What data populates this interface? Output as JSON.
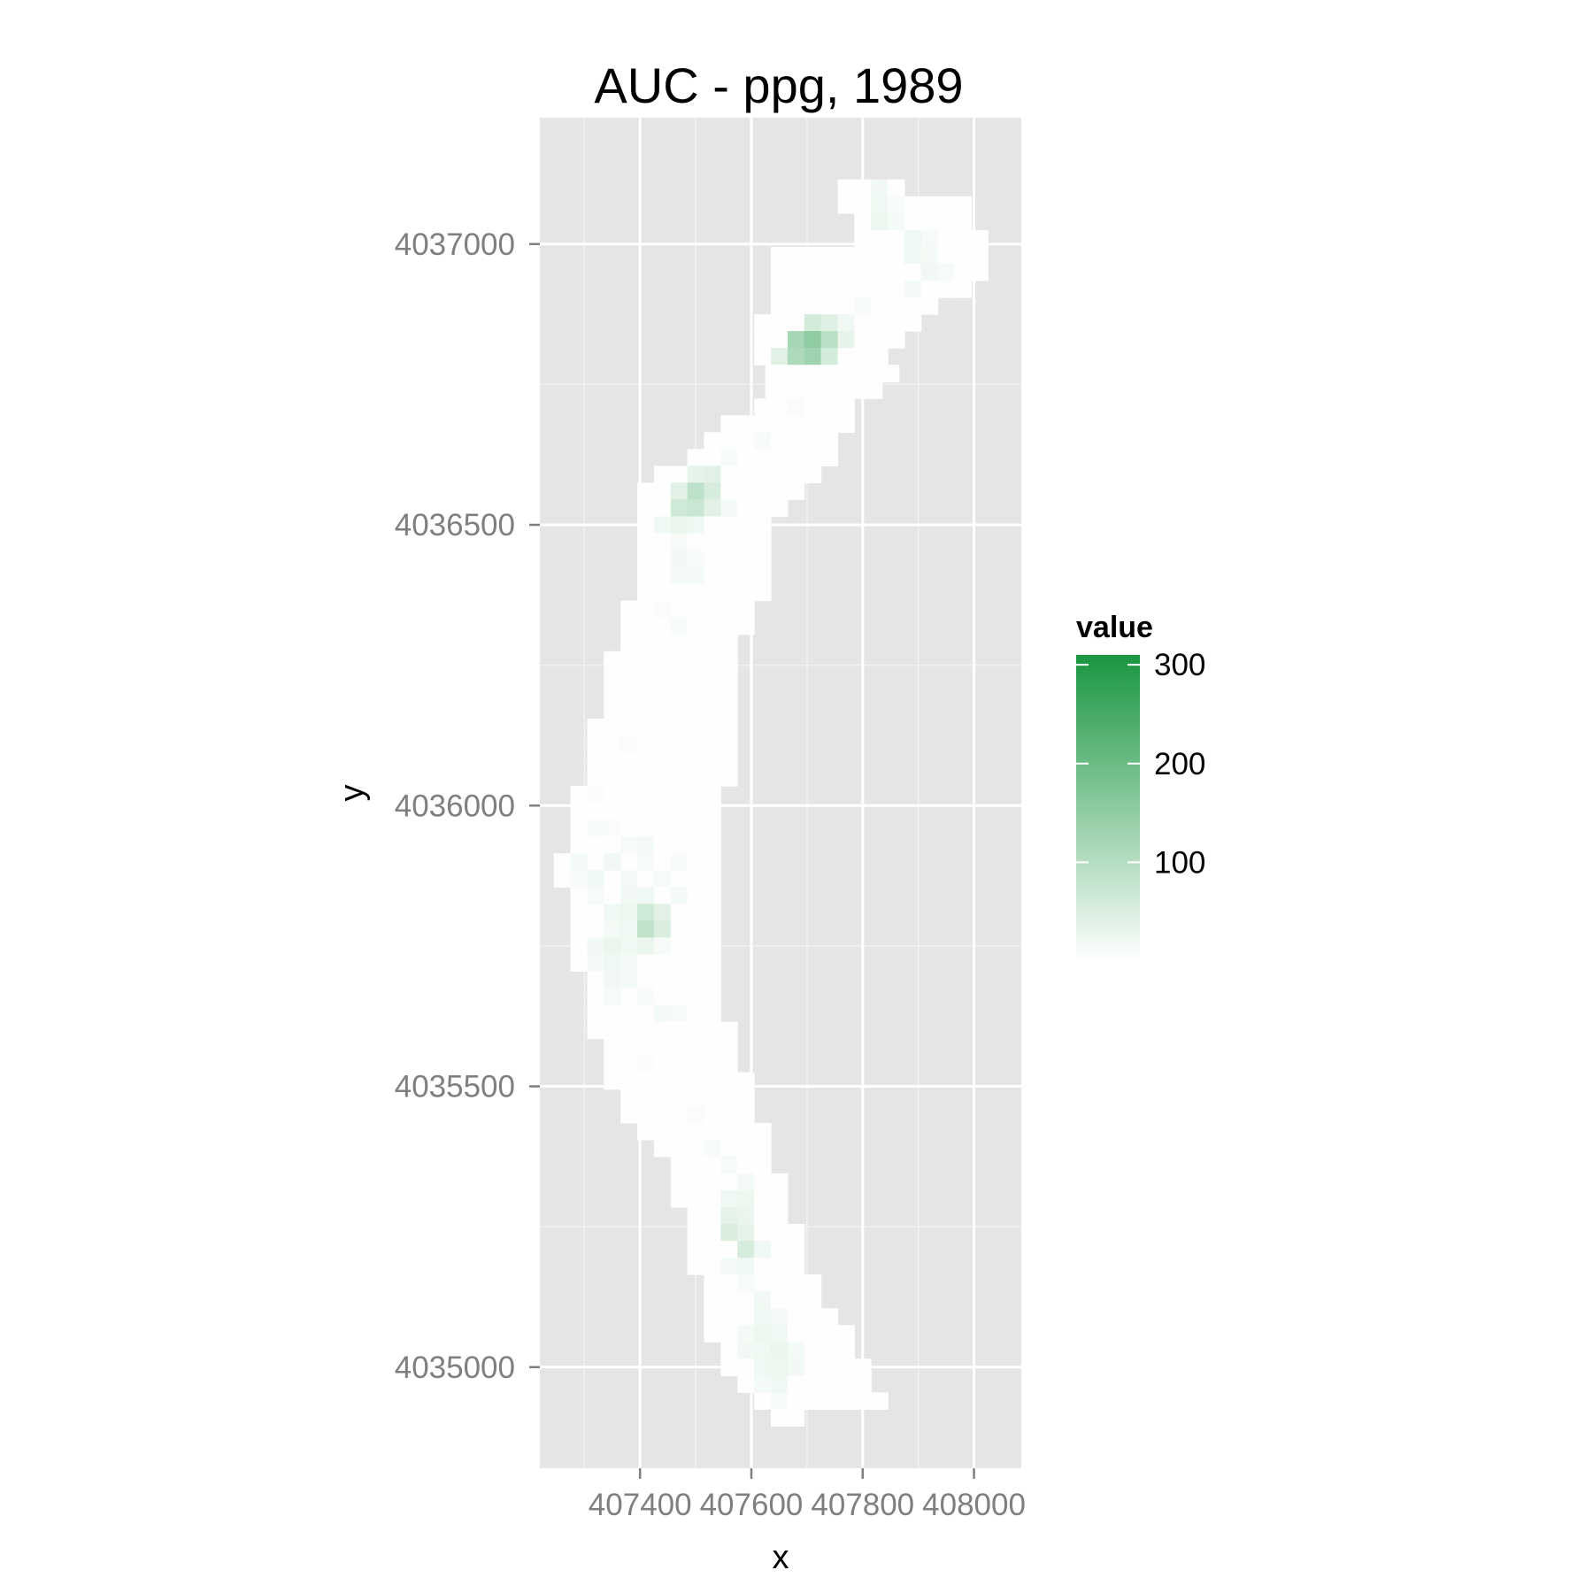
{
  "chart_data": {
    "type": "heatmap",
    "title": "AUC - ppg, 1989",
    "xlabel": "x",
    "ylabel": "y",
    "xlim": [
      407220,
      408085
    ],
    "ylim": [
      4034820,
      4037225
    ],
    "x_ticks": [
      407400,
      407600,
      407800,
      408000
    ],
    "x_tick_labels": [
      "407400",
      "407600",
      "407800",
      "408000"
    ],
    "y_ticks": [
      4035000,
      4035500,
      4036000,
      4036500,
      4037000
    ],
    "y_tick_labels": [
      "4035000",
      "4035500",
      "4036000",
      "4036500",
      "4037000"
    ],
    "grid": true,
    "cell_size": 30,
    "legend": {
      "title": "value",
      "position": "right",
      "min": 0,
      "max": 310,
      "breaks": [
        100,
        200,
        300
      ],
      "break_labels": [
        "100",
        "200",
        "300"
      ],
      "low_color": "#ffffff",
      "high_color": "#1a9641"
    },
    "rows": [
      {
        "y": 4037100,
        "x0": 407770,
        "x1": 407860,
        "hot": [
          [
            407830,
            18
          ]
        ]
      },
      {
        "y": 4037070,
        "x0": 407770,
        "x1": 408000,
        "hot": [
          [
            407830,
            22
          ],
          [
            407860,
            10
          ]
        ]
      },
      {
        "y": 4037040,
        "x0": 407800,
        "x1": 408000,
        "hot": [
          [
            407830,
            25
          ],
          [
            407860,
            15
          ]
        ]
      },
      {
        "y": 4037010,
        "x0": 407800,
        "x1": 408030,
        "hot": [
          [
            407890,
            20
          ],
          [
            407920,
            12
          ]
        ]
      },
      {
        "y": 4036980,
        "x0": 407650,
        "x1": 408030,
        "hot": [
          [
            407890,
            22
          ],
          [
            407920,
            15
          ]
        ]
      },
      {
        "y": 4036950,
        "x0": 407650,
        "x1": 408030,
        "hot": [
          [
            407920,
            18
          ],
          [
            407950,
            12
          ]
        ]
      },
      {
        "y": 4036920,
        "x0": 407650,
        "x1": 408000,
        "hot": [
          [
            407890,
            15
          ]
        ]
      },
      {
        "y": 4036890,
        "x0": 407650,
        "x1": 407940,
        "hot": [
          [
            407800,
            10
          ]
        ]
      },
      {
        "y": 4036860,
        "x0": 407620,
        "x1": 407910,
        "hot": [
          [
            407710,
            60
          ],
          [
            407740,
            45
          ],
          [
            407770,
            20
          ]
        ]
      },
      {
        "y": 4036830,
        "x0": 407620,
        "x1": 407880,
        "hot": [
          [
            407680,
            120
          ],
          [
            407710,
            150
          ],
          [
            407740,
            95
          ],
          [
            407770,
            35
          ]
        ]
      },
      {
        "y": 4036800,
        "x0": 407620,
        "x1": 407850,
        "hot": [
          [
            407650,
            40
          ],
          [
            407680,
            110
          ],
          [
            407710,
            130
          ],
          [
            407740,
            60
          ]
        ]
      },
      {
        "y": 4036770,
        "x0": 407640,
        "x1": 407850,
        "hot": [
          [
            407680,
            30
          ],
          [
            407710,
            25
          ]
        ]
      },
      {
        "y": 4036740,
        "x0": 407640,
        "x1": 407820,
        "hot": []
      },
      {
        "y": 4036710,
        "x0": 407620,
        "x1": 407790,
        "hot": [
          [
            407680,
            8
          ]
        ]
      },
      {
        "y": 4036680,
        "x0": 407560,
        "x1": 407790,
        "hot": []
      },
      {
        "y": 4036650,
        "x0": 407530,
        "x1": 407760,
        "hot": [
          [
            407620,
            10
          ]
        ]
      },
      {
        "y": 4036620,
        "x0": 407500,
        "x1": 407760,
        "hot": [
          [
            407560,
            12
          ]
        ]
      },
      {
        "y": 4036590,
        "x0": 407440,
        "x1": 407730,
        "hot": [
          [
            407500,
            35
          ],
          [
            407530,
            40
          ]
        ]
      },
      {
        "y": 4036560,
        "x0": 407410,
        "x1": 407700,
        "hot": [
          [
            407470,
            40
          ],
          [
            407500,
            90
          ],
          [
            407530,
            55
          ]
        ]
      },
      {
        "y": 4036530,
        "x0": 407410,
        "x1": 407670,
        "hot": [
          [
            407470,
            65
          ],
          [
            407500,
            75
          ],
          [
            407530,
            40
          ],
          [
            407560,
            15
          ]
        ]
      },
      {
        "y": 4036500,
        "x0": 407410,
        "x1": 407640,
        "hot": [
          [
            407440,
            20
          ],
          [
            407470,
            30
          ],
          [
            407500,
            20
          ]
        ]
      },
      {
        "y": 4036470,
        "x0": 407410,
        "x1": 407640,
        "hot": [
          [
            407470,
            12
          ]
        ]
      },
      {
        "y": 4036440,
        "x0": 407410,
        "x1": 407640,
        "hot": [
          [
            407470,
            18
          ],
          [
            407500,
            10
          ]
        ]
      },
      {
        "y": 4036410,
        "x0": 407410,
        "x1": 407640,
        "hot": [
          [
            407470,
            15
          ],
          [
            407500,
            15
          ]
        ]
      },
      {
        "y": 4036380,
        "x0": 407410,
        "x1": 407640,
        "hot": []
      },
      {
        "y": 4036350,
        "x0": 407380,
        "x1": 407610,
        "hot": [
          [
            407440,
            8
          ]
        ]
      },
      {
        "y": 4036320,
        "x0": 407380,
        "x1": 407610,
        "hot": [
          [
            407470,
            10
          ]
        ]
      },
      {
        "y": 4036290,
        "x0": 407380,
        "x1": 407580,
        "hot": []
      },
      {
        "y": 4036260,
        "x0": 407350,
        "x1": 407580,
        "hot": []
      },
      {
        "y": 4036230,
        "x0": 407350,
        "x1": 407580,
        "hot": []
      },
      {
        "y": 4036200,
        "x0": 407350,
        "x1": 407580,
        "hot": []
      },
      {
        "y": 4036170,
        "x0": 407350,
        "x1": 407580,
        "hot": []
      },
      {
        "y": 4036140,
        "x0": 407320,
        "x1": 407580,
        "hot": []
      },
      {
        "y": 4036110,
        "x0": 407320,
        "x1": 407580,
        "hot": [
          [
            407380,
            8
          ]
        ]
      },
      {
        "y": 4036080,
        "x0": 407320,
        "x1": 407580,
        "hot": []
      },
      {
        "y": 4036050,
        "x0": 407320,
        "x1": 407580,
        "hot": []
      },
      {
        "y": 4036020,
        "x0": 407290,
        "x1": 407550,
        "hot": [
          [
            407320,
            6
          ]
        ]
      },
      {
        "y": 4035990,
        "x0": 407290,
        "x1": 407550,
        "hot": []
      },
      {
        "y": 4035960,
        "x0": 407290,
        "x1": 407550,
        "hot": [
          [
            407320,
            10
          ],
          [
            407350,
            8
          ]
        ]
      },
      {
        "y": 4035930,
        "x0": 407290,
        "x1": 407550,
        "hot": [
          [
            407380,
            12
          ],
          [
            407410,
            15
          ]
        ]
      },
      {
        "y": 4035900,
        "x0": 407260,
        "x1": 407550,
        "hot": [
          [
            407290,
            15
          ],
          [
            407350,
            18
          ],
          [
            407410,
            12
          ],
          [
            407470,
            10
          ]
        ]
      },
      {
        "y": 4035870,
        "x0": 407260,
        "x1": 407550,
        "hot": [
          [
            407290,
            10
          ],
          [
            407320,
            20
          ],
          [
            407380,
            15
          ],
          [
            407440,
            12
          ]
        ]
      },
      {
        "y": 4035840,
        "x0": 407290,
        "x1": 407550,
        "hot": [
          [
            407320,
            12
          ],
          [
            407380,
            18
          ],
          [
            407410,
            22
          ],
          [
            407470,
            15
          ]
        ]
      },
      {
        "y": 4035810,
        "x0": 407290,
        "x1": 407550,
        "hot": [
          [
            407350,
            20
          ],
          [
            407380,
            25
          ],
          [
            407410,
            65
          ],
          [
            407440,
            40
          ]
        ]
      },
      {
        "y": 4035780,
        "x0": 407290,
        "x1": 407550,
        "hot": [
          [
            407350,
            15
          ],
          [
            407380,
            20
          ],
          [
            407410,
            85
          ],
          [
            407440,
            50
          ]
        ]
      },
      {
        "y": 4035750,
        "x0": 407290,
        "x1": 407550,
        "hot": [
          [
            407320,
            18
          ],
          [
            407350,
            30
          ],
          [
            407380,
            22
          ],
          [
            407410,
            30
          ],
          [
            407440,
            12
          ]
        ]
      },
      {
        "y": 4035720,
        "x0": 407290,
        "x1": 407550,
        "hot": [
          [
            407320,
            15
          ],
          [
            407350,
            20
          ],
          [
            407380,
            15
          ]
        ]
      },
      {
        "y": 4035690,
        "x0": 407320,
        "x1": 407550,
        "hot": [
          [
            407350,
            18
          ],
          [
            407380,
            15
          ]
        ]
      },
      {
        "y": 4035660,
        "x0": 407320,
        "x1": 407550,
        "hot": [
          [
            407350,
            12
          ],
          [
            407410,
            10
          ]
        ]
      },
      {
        "y": 4035630,
        "x0": 407320,
        "x1": 407550,
        "hot": [
          [
            407440,
            15
          ],
          [
            407470,
            12
          ]
        ]
      },
      {
        "y": 4035600,
        "x0": 407320,
        "x1": 407580,
        "hot": []
      },
      {
        "y": 4035570,
        "x0": 407350,
        "x1": 407580,
        "hot": []
      },
      {
        "y": 4035540,
        "x0": 407350,
        "x1": 407580,
        "hot": [
          [
            407410,
            6
          ]
        ]
      },
      {
        "y": 4035510,
        "x0": 407350,
        "x1": 407610,
        "hot": []
      },
      {
        "y": 4035480,
        "x0": 407380,
        "x1": 407610,
        "hot": []
      },
      {
        "y": 4035450,
        "x0": 407380,
        "x1": 407610,
        "hot": [
          [
            407500,
            8
          ]
        ]
      },
      {
        "y": 4035420,
        "x0": 407410,
        "x1": 407640,
        "hot": []
      },
      {
        "y": 4035390,
        "x0": 407440,
        "x1": 407640,
        "hot": [
          [
            407530,
            10
          ]
        ]
      },
      {
        "y": 4035360,
        "x0": 407470,
        "x1": 407640,
        "hot": [
          [
            407560,
            12
          ]
        ]
      },
      {
        "y": 4035330,
        "x0": 407470,
        "x1": 407670,
        "hot": [
          [
            407590,
            15
          ]
        ]
      },
      {
        "y": 4035300,
        "x0": 407470,
        "x1": 407670,
        "hot": [
          [
            407560,
            20
          ],
          [
            407590,
            25
          ]
        ]
      },
      {
        "y": 4035270,
        "x0": 407500,
        "x1": 407670,
        "hot": [
          [
            407560,
            35
          ],
          [
            407590,
            30
          ]
        ]
      },
      {
        "y": 4035240,
        "x0": 407500,
        "x1": 407700,
        "hot": [
          [
            407560,
            50
          ],
          [
            407590,
            35
          ]
        ]
      },
      {
        "y": 4035210,
        "x0": 407500,
        "x1": 407700,
        "hot": [
          [
            407590,
            55
          ],
          [
            407620,
            20
          ]
        ]
      },
      {
        "y": 4035180,
        "x0": 407500,
        "x1": 407700,
        "hot": [
          [
            407560,
            15
          ],
          [
            407590,
            20
          ]
        ]
      },
      {
        "y": 4035150,
        "x0": 407530,
        "x1": 407730,
        "hot": [
          [
            407590,
            10
          ]
        ]
      },
      {
        "y": 4035120,
        "x0": 407530,
        "x1": 407730,
        "hot": [
          [
            407620,
            18
          ]
        ]
      },
      {
        "y": 4035090,
        "x0": 407530,
        "x1": 407760,
        "hot": [
          [
            407620,
            22
          ],
          [
            407650,
            15
          ]
        ]
      },
      {
        "y": 4035060,
        "x0": 407530,
        "x1": 407790,
        "hot": [
          [
            407590,
            15
          ],
          [
            407620,
            25
          ],
          [
            407650,
            20
          ]
        ]
      },
      {
        "y": 4035030,
        "x0": 407560,
        "x1": 407790,
        "hot": [
          [
            407590,
            18
          ],
          [
            407620,
            20
          ],
          [
            407650,
            30
          ],
          [
            407680,
            15
          ]
        ]
      },
      {
        "y": 4035000,
        "x0": 407560,
        "x1": 407820,
        "hot": [
          [
            407620,
            22
          ],
          [
            407650,
            25
          ],
          [
            407680,
            18
          ]
        ]
      },
      {
        "y": 4034970,
        "x0": 407590,
        "x1": 407820,
        "hot": [
          [
            407620,
            15
          ],
          [
            407650,
            20
          ]
        ]
      },
      {
        "y": 4034940,
        "x0": 407620,
        "x1": 407850,
        "hot": [
          [
            407650,
            10
          ]
        ]
      },
      {
        "y": 4034910,
        "x0": 407650,
        "x1": 407700,
        "hot": []
      }
    ]
  }
}
